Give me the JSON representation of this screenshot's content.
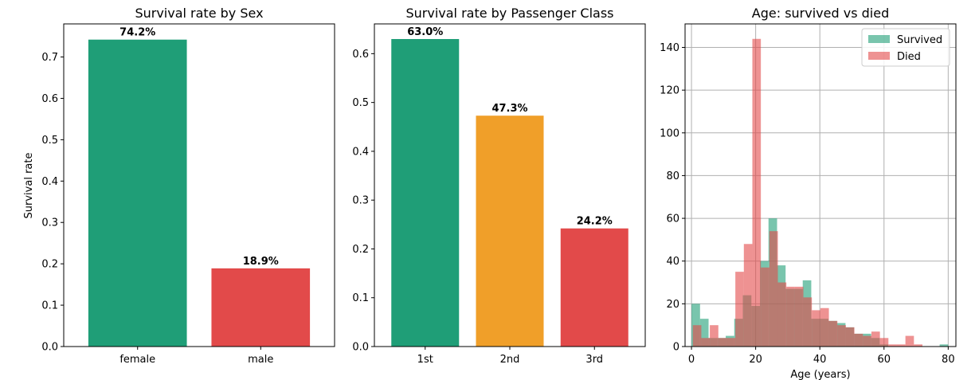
{
  "chart_data": [
    {
      "type": "bar",
      "title": "Survival rate by Sex",
      "xlabel": "",
      "ylabel": "Survival rate",
      "ylim": [
        0,
        0.78
      ],
      "yticks": [
        0.0,
        0.1,
        0.2,
        0.3,
        0.4,
        0.5,
        0.6,
        0.7
      ],
      "ytick_labels": [
        "0.0",
        "0.1",
        "0.2",
        "0.3",
        "0.4",
        "0.5",
        "0.6",
        "0.7"
      ],
      "categories": [
        "female",
        "male"
      ],
      "values": [
        0.742,
        0.189
      ],
      "data_labels": [
        "74.2%",
        "18.9%"
      ],
      "colors": [
        "#1f9e77",
        "#e24a4a"
      ],
      "grid": false
    },
    {
      "type": "bar",
      "title": "Survival rate by Passenger Class",
      "xlabel": "",
      "ylabel": "",
      "ylim": [
        0,
        0.661
      ],
      "yticks": [
        0.0,
        0.1,
        0.2,
        0.3,
        0.4,
        0.5,
        0.6
      ],
      "ytick_labels": [
        "0.0",
        "0.1",
        "0.2",
        "0.3",
        "0.4",
        "0.5",
        "0.6"
      ],
      "categories": [
        "1st",
        "2nd",
        "3rd"
      ],
      "values": [
        0.63,
        0.473,
        0.242
      ],
      "data_labels": [
        "63.0%",
        "47.3%",
        "24.2%"
      ],
      "colors": [
        "#1f9e77",
        "#f09f29",
        "#e24a4a"
      ],
      "grid": false
    },
    {
      "type": "histogram",
      "title": "Age: survived vs died",
      "xlabel": "Age (years)",
      "ylabel": "",
      "xlim": [
        -2,
        82.4
      ],
      "ylim": [
        0,
        151
      ],
      "xticks": [
        0,
        20,
        40,
        60,
        80
      ],
      "xtick_labels": [
        "0",
        "20",
        "40",
        "60",
        "80"
      ],
      "yticks": [
        0,
        20,
        40,
        60,
        80,
        100,
        120,
        140
      ],
      "ytick_labels": [
        "0",
        "20",
        "40",
        "60",
        "80",
        "100",
        "120",
        "140"
      ],
      "grid": true,
      "legend_position": "top-right",
      "series": [
        {
          "name": "Survived",
          "color": "#1f9e77",
          "bin_edges": [
            0,
            2.67,
            5.33,
            8,
            10.67,
            13.33,
            16,
            18.67,
            21.33,
            24,
            26.67,
            29.33,
            32,
            34.67,
            37.33,
            40,
            42.67,
            45.33,
            48,
            50.67,
            53.33,
            56,
            58.67,
            61.33,
            64,
            66.67,
            69.33,
            72,
            74.67,
            77.33,
            80
          ],
          "counts": [
            20,
            13,
            4,
            4,
            5,
            13,
            24,
            19,
            40,
            60,
            38,
            27,
            27,
            31,
            13,
            13,
            12,
            11,
            9,
            6,
            6,
            4,
            1,
            0,
            0,
            0,
            0,
            0,
            0,
            1
          ]
        },
        {
          "name": "Died",
          "color": "#e24a4a",
          "bin_edges": [
            0.42,
            3.07,
            5.72,
            8.37,
            11.02,
            13.67,
            16.32,
            18.97,
            21.62,
            24.27,
            26.92,
            29.57,
            32.22,
            34.87,
            37.52,
            40.17,
            42.82,
            45.47,
            48.12,
            50.77,
            53.42,
            56.07,
            58.72,
            61.37,
            64.02,
            66.67,
            69.32,
            71.97,
            74.62
          ],
          "counts": [
            10,
            4,
            10,
            4,
            4,
            35,
            48,
            144,
            37,
            54,
            30,
            28,
            28,
            23,
            17,
            18,
            12,
            10,
            9,
            6,
            5,
            7,
            4,
            1,
            1,
            5,
            1,
            0
          ]
        }
      ]
    }
  ]
}
